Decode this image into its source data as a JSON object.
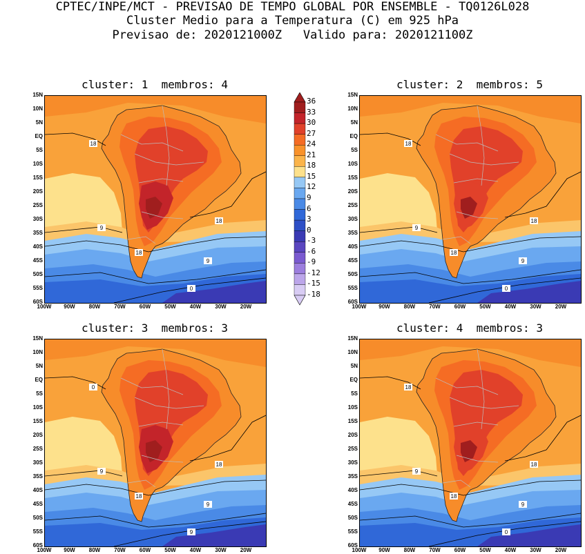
{
  "header": {
    "line1": "CPTEC/INPE/MCT - PREVISAO DE TEMPO GLOBAL POR ENSEMBLE - TQ0126L028",
    "line2": "Cluster Medio para a Temperatura (C) em 925 hPa",
    "line3": "Previsao de: 2020121000Z   Valido para: 2020121100Z"
  },
  "panels": [
    {
      "title": "cluster: 1  membros: 4"
    },
    {
      "title": "cluster: 2  membros: 5"
    },
    {
      "title": "cluster: 3  membros: 3"
    },
    {
      "title": "cluster: 4  membros: 3"
    }
  ],
  "axes": {
    "lat_labels": [
      "15N",
      "10N",
      "5N",
      "EQ",
      "5S",
      "10S",
      "15S",
      "20S",
      "25S",
      "30S",
      "35S",
      "40S",
      "45S",
      "50S",
      "55S",
      "60S"
    ],
    "lon_labels": [
      "100W",
      "90W",
      "80W",
      "70W",
      "60W",
      "50W",
      "40W",
      "30W",
      "20W"
    ]
  },
  "colorbar": {
    "labels": [
      "36",
      "33",
      "30",
      "27",
      "24",
      "21",
      "18",
      "15",
      "12",
      "9",
      "6",
      "3",
      "0",
      "-3",
      "-6",
      "-9",
      "-12",
      "-15",
      "-18"
    ],
    "colors": [
      "#a01e1e",
      "#c3242a",
      "#e1412a",
      "#f56c24",
      "#f9922a",
      "#fbb44a",
      "#fde18c",
      "#96c8f5",
      "#6aa8f0",
      "#4a8ae6",
      "#3068d8",
      "#2d4fc6",
      "#3a3ab4",
      "#5a46c0",
      "#7a5ad0",
      "#9c7ede",
      "#bca6ea",
      "#d8ccf4"
    ]
  },
  "contour_labels": {
    "p1": [
      "18",
      "9",
      "18",
      "18",
      "9",
      "0"
    ],
    "p2": [
      "18",
      "9",
      "18",
      "18",
      "9",
      "0"
    ],
    "p3": [
      "18",
      "9",
      "18",
      "18",
      "9",
      "9",
      "0"
    ],
    "p4": [
      "18",
      "9",
      "18",
      "18",
      "9",
      "0"
    ]
  }
}
